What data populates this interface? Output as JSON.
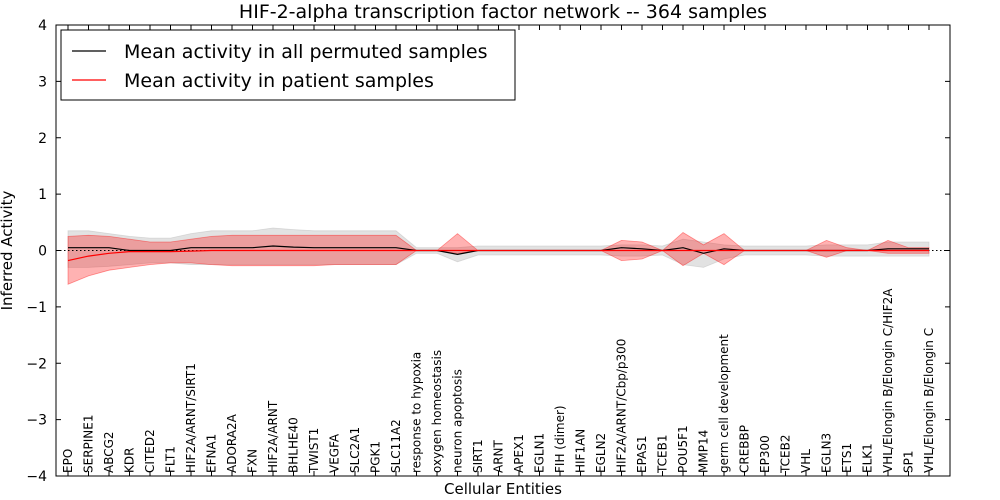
{
  "chart_data": {
    "type": "line",
    "title": "HIF-2-alpha transcription factor network -- 364 samples",
    "xlabel": "Cellular Entities",
    "ylabel": "Inferred Activity",
    "ylim": [
      -4,
      4
    ],
    "yticks": [
      "4",
      "3",
      "2",
      "1",
      "0",
      "−1",
      "−2",
      "−3",
      "−4"
    ],
    "ytick_values": [
      4,
      3,
      2,
      1,
      0,
      -1,
      -2,
      -3,
      -4
    ],
    "grid": false,
    "legend_position": "top-left",
    "categories": [
      "EPO",
      "SERPINE1",
      "ABCG2",
      "KDR",
      "CITED2",
      "FLT1",
      "HIF2A/ARNT/SIRT1",
      "EFNA1",
      "ADORA2A",
      "FXN",
      "HIF2A/ARNT",
      "BHLHE40",
      "TWIST1",
      "VEGFA",
      "SLC2A1",
      "PGK1",
      "SLC11A2",
      "response to hypoxia",
      "oxygen homeostasis",
      "neuron apoptosis",
      "SIRT1",
      "ARNT",
      "APEX1",
      "EGLN1",
      "FIH (dimer)",
      "HIF1AN",
      "EGLN2",
      "HIF2A/ARNT/Cbp/p300",
      "EPAS1",
      "TCEB1",
      "POU5F1",
      "MMP14",
      "germ cell development",
      "CREBBP",
      "EP300",
      "TCEB2",
      "VHL",
      "EGLN3",
      "ETS1",
      "ELK1",
      "VHL/Elongin B/Elongin C/HIF2A",
      "SP1",
      "VHL/Elongin B/Elongin C"
    ],
    "series": [
      {
        "name": "Mean activity in all permuted samples",
        "color": "#000000",
        "band_color": "#bfbfbf",
        "values": [
          0.05,
          0.05,
          0.05,
          0.0,
          0.0,
          0.0,
          0.05,
          0.05,
          0.05,
          0.05,
          0.08,
          0.06,
          0.05,
          0.05,
          0.05,
          0.05,
          0.05,
          0.0,
          0.0,
          -0.07,
          0.0,
          0.0,
          0.0,
          0.0,
          0.0,
          0.0,
          0.0,
          0.05,
          0.03,
          0.0,
          0.05,
          -0.05,
          0.03,
          0.0,
          0.0,
          0.0,
          0.0,
          0.0,
          0.0,
          0.0,
          0.03,
          0.03,
          0.03
        ],
        "upper": [
          0.35,
          0.35,
          0.3,
          0.25,
          0.22,
          0.22,
          0.3,
          0.35,
          0.35,
          0.35,
          0.4,
          0.37,
          0.35,
          0.35,
          0.35,
          0.35,
          0.35,
          0.05,
          0.05,
          0.05,
          0.08,
          0.08,
          0.08,
          0.08,
          0.08,
          0.08,
          0.08,
          0.1,
          0.1,
          0.08,
          0.2,
          0.15,
          0.1,
          0.08,
          0.08,
          0.08,
          0.08,
          0.1,
          0.1,
          0.1,
          0.15,
          0.15,
          0.15
        ],
        "lower": [
          -0.3,
          -0.3,
          -0.28,
          -0.25,
          -0.22,
          -0.22,
          -0.25,
          -0.25,
          -0.25,
          -0.25,
          -0.25,
          -0.25,
          -0.25,
          -0.25,
          -0.25,
          -0.25,
          -0.25,
          -0.05,
          -0.05,
          -0.2,
          -0.08,
          -0.08,
          -0.08,
          -0.08,
          -0.08,
          -0.08,
          -0.08,
          -0.1,
          -0.1,
          -0.08,
          -0.25,
          -0.3,
          -0.15,
          -0.08,
          -0.08,
          -0.08,
          -0.08,
          -0.1,
          -0.1,
          -0.1,
          -0.1,
          -0.1,
          -0.1
        ]
      },
      {
        "name": "Mean activity in patient samples",
        "color": "#ff0000",
        "band_color": "#ff0000",
        "values": [
          -0.18,
          -0.1,
          -0.05,
          -0.02,
          -0.02,
          -0.02,
          -0.01,
          0.0,
          0.0,
          0.0,
          0.0,
          0.0,
          0.0,
          0.0,
          0.0,
          0.0,
          0.0,
          0.0,
          0.0,
          0.0,
          0.0,
          0.0,
          0.0,
          0.0,
          0.0,
          0.0,
          0.0,
          0.0,
          0.0,
          0.0,
          0.0,
          0.0,
          0.0,
          0.0,
          0.0,
          0.0,
          0.0,
          0.0,
          0.0,
          0.0,
          0.0,
          0.0,
          0.0
        ],
        "upper": [
          0.25,
          0.27,
          0.25,
          0.2,
          0.15,
          0.15,
          0.2,
          0.25,
          0.27,
          0.27,
          0.27,
          0.27,
          0.27,
          0.27,
          0.27,
          0.27,
          0.27,
          0.0,
          0.0,
          0.3,
          0.0,
          0.0,
          0.0,
          0.0,
          0.0,
          0.0,
          0.0,
          0.18,
          0.15,
          0.0,
          0.32,
          0.1,
          0.3,
          0.0,
          0.0,
          0.0,
          0.0,
          0.18,
          0.05,
          0.0,
          0.18,
          0.05,
          0.05
        ],
        "lower": [
          -0.6,
          -0.45,
          -0.35,
          -0.3,
          -0.25,
          -0.22,
          -0.22,
          -0.25,
          -0.27,
          -0.27,
          -0.27,
          -0.27,
          -0.27,
          -0.25,
          -0.25,
          -0.25,
          -0.25,
          0.0,
          0.0,
          -0.05,
          0.0,
          0.0,
          0.0,
          0.0,
          0.0,
          0.0,
          0.0,
          -0.18,
          -0.15,
          0.0,
          -0.27,
          -0.05,
          -0.25,
          0.0,
          0.0,
          0.0,
          0.0,
          -0.12,
          0.0,
          0.0,
          -0.05,
          -0.05,
          -0.05
        ]
      }
    ]
  }
}
